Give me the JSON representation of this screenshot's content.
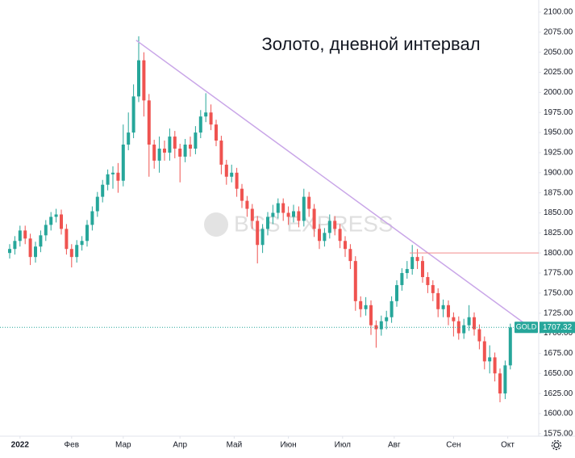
{
  "chart_data": {
    "type": "candlestick",
    "title": "Золото, дневной интервал",
    "watermark": "BCS EXPRESS",
    "symbol": "GOLD",
    "last_price": 1707.32,
    "up_color": "#26a69a",
    "down_color": "#ef5350",
    "xlim": [
      -1.875,
      102.5
    ],
    "ylim": [
      1571.8,
      2115.1
    ],
    "xticks": [
      {
        "value": 2,
        "label": "2022"
      },
      {
        "value": 12,
        "label": "Фев"
      },
      {
        "value": 22,
        "label": "Мар"
      },
      {
        "value": 33,
        "label": "Апр"
      },
      {
        "value": 43.5,
        "label": "Май"
      },
      {
        "value": 54,
        "label": "Июн"
      },
      {
        "value": 64.5,
        "label": "Июл"
      },
      {
        "value": 74.5,
        "label": "Авг"
      },
      {
        "value": 86,
        "label": "Сен"
      },
      {
        "value": 96.5,
        "label": "Окт"
      }
    ],
    "yticks": [
      {
        "value": 1575,
        "label": "1575.00"
      },
      {
        "value": 1600,
        "label": "1600.00"
      },
      {
        "value": 1625,
        "label": "1625.00"
      },
      {
        "value": 1650,
        "label": "1650.00"
      },
      {
        "value": 1675,
        "label": "1675.00"
      },
      {
        "value": 1700,
        "label": "1700.00"
      },
      {
        "value": 1725,
        "label": "1725.00"
      },
      {
        "value": 1750,
        "label": "1750.00"
      },
      {
        "value": 1775,
        "label": "1775.00"
      },
      {
        "value": 1800,
        "label": "1800.00"
      },
      {
        "value": 1825,
        "label": "1825.00"
      },
      {
        "value": 1850,
        "label": "1850.00"
      },
      {
        "value": 1875,
        "label": "1875.00"
      },
      {
        "value": 1900,
        "label": "1900.00"
      },
      {
        "value": 1925,
        "label": "1925.00"
      },
      {
        "value": 1950,
        "label": "1950.00"
      },
      {
        "value": 1975,
        "label": "1975.00"
      },
      {
        "value": 2000,
        "label": "2000.00"
      },
      {
        "value": 2025,
        "label": "2025.00"
      },
      {
        "value": 2050,
        "label": "2050.00"
      },
      {
        "value": 2075,
        "label": "2075.00"
      },
      {
        "value": 2100,
        "label": "2100.00"
      }
    ],
    "trendline": {
      "x": [
        24.5,
        99.6
      ],
      "y": [
        2065,
        1713
      ],
      "color": "#c9a6e8"
    },
    "level_line": {
      "x": [
        77.5,
        102.5
      ],
      "y": [
        1800,
        1800
      ],
      "color": "#f28b8b"
    },
    "open": [
      1800,
      1805,
      1815,
      1828,
      1818,
      1795,
      1808,
      1822,
      1835,
      1845,
      1848,
      1830,
      1805,
      1795,
      1810,
      1815,
      1835,
      1852,
      1870,
      1885,
      1898,
      1900,
      1890,
      1935,
      1950,
      1995,
      2040,
      1990,
      1935,
      1915,
      1930,
      1925,
      1945,
      1930,
      1920,
      1935,
      1930,
      1950,
      1970,
      1975,
      1960,
      1940,
      1910,
      1895,
      1900,
      1880,
      1865,
      1855,
      1840,
      1810,
      1830,
      1845,
      1850,
      1862,
      1850,
      1845,
      1852,
      1840,
      1870,
      1855,
      1830,
      1815,
      1825,
      1840,
      1830,
      1815,
      1805,
      1790,
      1740,
      1730,
      1735,
      1710,
      1705,
      1715,
      1720,
      1740,
      1760,
      1775,
      1780,
      1795,
      1790,
      1770,
      1760,
      1750,
      1730,
      1735,
      1720,
      1715,
      1700,
      1710,
      1720,
      1705,
      1690,
      1665,
      1670,
      1650,
      1625,
      1660
    ],
    "high": [
      1811,
      1821,
      1834,
      1834,
      1824,
      1814,
      1828,
      1841,
      1851,
      1855,
      1854,
      1836,
      1811,
      1816,
      1821,
      1841,
      1858,
      1876,
      1891,
      1904,
      1908,
      1912,
      1960,
      1975,
      2010,
      2070,
      2050,
      1998,
      1941,
      1945,
      1940,
      1955,
      1952,
      1936,
      1942,
      1945,
      1958,
      1978,
      1999,
      1985,
      1966,
      1946,
      1916,
      1910,
      1906,
      1886,
      1871,
      1861,
      1846,
      1836,
      1851,
      1860,
      1868,
      1868,
      1858,
      1860,
      1858,
      1880,
      1876,
      1861,
      1836,
      1831,
      1848,
      1846,
      1836,
      1821,
      1811,
      1796,
      1746,
      1745,
      1741,
      1716,
      1722,
      1728,
      1746,
      1766,
      1781,
      1790,
      1810,
      1805,
      1796,
      1776,
      1766,
      1756,
      1742,
      1741,
      1726,
      1721,
      1718,
      1735,
      1726,
      1711,
      1696,
      1685,
      1676,
      1656,
      1666,
      1712
    ],
    "low": [
      1793,
      1798,
      1808,
      1811,
      1785,
      1788,
      1801,
      1815,
      1828,
      1838,
      1823,
      1798,
      1782,
      1788,
      1803,
      1808,
      1828,
      1845,
      1863,
      1878,
      1880,
      1875,
      1883,
      1928,
      1943,
      1988,
      1970,
      1895,
      1905,
      1900,
      1915,
      1915,
      1918,
      1888,
      1913,
      1920,
      1923,
      1943,
      1963,
      1953,
      1933,
      1898,
      1885,
      1888,
      1870,
      1856,
      1845,
      1830,
      1787,
      1800,
      1822,
      1836,
      1843,
      1840,
      1835,
      1838,
      1832,
      1833,
      1845,
      1820,
      1805,
      1808,
      1818,
      1822,
      1806,
      1795,
      1780,
      1728,
      1720,
      1722,
      1698,
      1682,
      1697,
      1705,
      1713,
      1733,
      1753,
      1768,
      1773,
      1780,
      1763,
      1750,
      1740,
      1720,
      1720,
      1710,
      1696,
      1692,
      1693,
      1703,
      1697,
      1680,
      1655,
      1650,
      1640,
      1614,
      1618,
      1655
    ],
    "close": [
      1805,
      1815,
      1828,
      1818,
      1795,
      1808,
      1822,
      1835,
      1845,
      1848,
      1830,
      1805,
      1795,
      1810,
      1815,
      1835,
      1852,
      1870,
      1885,
      1898,
      1900,
      1890,
      1935,
      1950,
      1995,
      2040,
      1990,
      1935,
      1915,
      1930,
      1925,
      1945,
      1930,
      1920,
      1935,
      1930,
      1950,
      1970,
      1975,
      1960,
      1940,
      1910,
      1895,
      1900,
      1880,
      1865,
      1855,
      1840,
      1810,
      1830,
      1845,
      1850,
      1862,
      1850,
      1845,
      1852,
      1840,
      1870,
      1855,
      1830,
      1815,
      1825,
      1840,
      1830,
      1815,
      1805,
      1790,
      1740,
      1730,
      1735,
      1710,
      1705,
      1715,
      1720,
      1740,
      1760,
      1775,
      1780,
      1795,
      1790,
      1770,
      1760,
      1750,
      1730,
      1735,
      1720,
      1715,
      1700,
      1710,
      1720,
      1705,
      1690,
      1665,
      1670,
      1650,
      1625,
      1660,
      1707.32
    ]
  }
}
